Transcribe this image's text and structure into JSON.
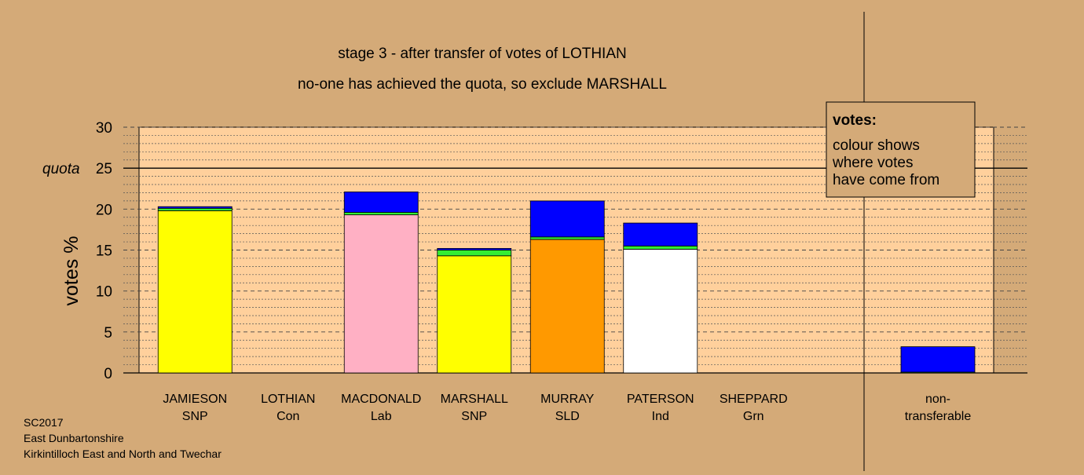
{
  "chart_data": {
    "type": "bar",
    "title": "stage 3 - after transfer of votes of LOTHIAN",
    "subtitle": "no-one has achieved the quota, so exclude MARSHALL",
    "ylabel": "votes %",
    "ylim": [
      0,
      30
    ],
    "yticks": [
      0,
      5,
      10,
      15,
      20,
      25,
      30
    ],
    "quota": 25,
    "quota_label": "quota",
    "grid": true,
    "categories": [
      {
        "name": "JAMIESON",
        "party": "SNP"
      },
      {
        "name": "LOTHIAN",
        "party": "Con"
      },
      {
        "name": "MACDONALD",
        "party": "Lab"
      },
      {
        "name": "MARSHALL",
        "party": "SNP"
      },
      {
        "name": "MURRAY",
        "party": "SLD"
      },
      {
        "name": "PATERSON",
        "party": "Ind"
      },
      {
        "name": "SHEPPARD",
        "party": "Grn"
      }
    ],
    "bars": [
      {
        "segments": [
          {
            "color": "#ffff00",
            "value": 19.8
          },
          {
            "color": "#33ee33",
            "value": 0.3
          },
          {
            "color": "#0000ff",
            "value": 0.2
          }
        ]
      },
      {
        "segments": []
      },
      {
        "segments": [
          {
            "color": "#ffb0c4",
            "value": 19.3
          },
          {
            "color": "#33ee33",
            "value": 0.3
          },
          {
            "color": "#0000ff",
            "value": 2.5
          }
        ]
      },
      {
        "segments": [
          {
            "color": "#ffff00",
            "value": 14.3
          },
          {
            "color": "#33ee33",
            "value": 0.7
          },
          {
            "color": "#0000ff",
            "value": 0.2
          }
        ]
      },
      {
        "segments": [
          {
            "color": "#ff9900",
            "value": 16.3
          },
          {
            "color": "#33ee33",
            "value": 0.3
          },
          {
            "color": "#0000ff",
            "value": 4.4
          }
        ]
      },
      {
        "segments": [
          {
            "color": "#ffffff",
            "value": 15.1
          },
          {
            "color": "#33ee33",
            "value": 0.4
          },
          {
            "color": "#0000ff",
            "value": 2.8
          }
        ]
      },
      {
        "segments": []
      }
    ],
    "nontransferable": {
      "label_line1": "non-",
      "label_line2": "transferable",
      "segments": [
        {
          "color": "#33ee33",
          "value": 0.1
        },
        {
          "color": "#0000ff",
          "value": 3.1
        }
      ]
    },
    "legend": {
      "title": "votes:",
      "lines": [
        "colour shows",
        "where votes",
        "have come from"
      ],
      "placement": "top-right"
    },
    "colors": {
      "background": "#d4aa78",
      "plot_area": "#ffd09c"
    }
  },
  "footer": {
    "lines": [
      "SC2017",
      "East Dunbartonshire",
      "Kirkintilloch East and North and Twechar"
    ]
  }
}
